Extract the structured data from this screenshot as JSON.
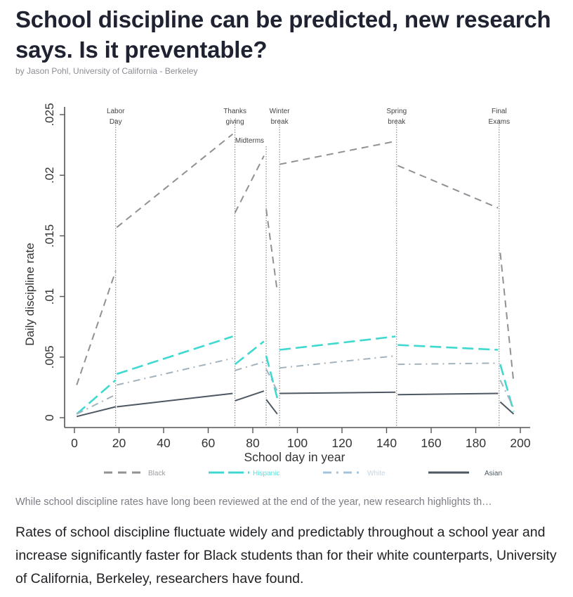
{
  "article": {
    "title": "School discipline can be predicted, new research says. Is it preventable?",
    "byline": "by Jason Pohl, University of California - Berkeley",
    "caption": "While school discipline rates have long been reviewed at the end of the year, new research highlights th…",
    "body": "Rates of school discipline fluctuate widely and predictably throughout a school year and increase significantly faster for Black students than for their white counterparts, University of California, Berkeley, researchers have found."
  },
  "chart_data": {
    "type": "line",
    "title": "",
    "xlabel": "School day in year",
    "ylabel": "Daily discipline rate",
    "xlim": [
      0,
      200
    ],
    "ylim": [
      0,
      0.025
    ],
    "xticks": [
      0,
      20,
      40,
      60,
      80,
      100,
      120,
      140,
      160,
      180,
      200
    ],
    "xtick_labels": [
      "0",
      "20",
      "40",
      "60",
      "80",
      "100",
      "120",
      "140",
      "160",
      "180",
      "200"
    ],
    "yticks": [
      0,
      0.005,
      0.01,
      0.015,
      0.02,
      0.025
    ],
    "ytick_labels": [
      "0",
      ".005",
      ".01",
      ".015",
      ".02",
      ".025"
    ],
    "grid": false,
    "legend_position": "bottom",
    "events": [
      {
        "label": "Labor Day",
        "label_lines": [
          "Labor",
          "Day"
        ],
        "x": 18.5
      },
      {
        "label": "Thanksgiving",
        "label_lines": [
          "Thanks",
          "giving"
        ],
        "x": 72
      },
      {
        "label": "Midterms",
        "label_lines": [
          "Midterms"
        ],
        "x": 86,
        "label_side": "left",
        "label_row": 2
      },
      {
        "label": "Winter break",
        "label_lines": [
          "Winter",
          "break"
        ],
        "x": 92
      },
      {
        "label": "Spring break",
        "label_lines": [
          "Spring",
          "break"
        ],
        "x": 144.5
      },
      {
        "label": "Final Exams",
        "label_lines": [
          "Final",
          "Exams"
        ],
        "x": 190.5
      }
    ],
    "series": [
      {
        "name": "Black",
        "color": "#8e9196",
        "style": "dash",
        "segments": [
          [
            [
              1,
              0.0027
            ],
            [
              18.5,
              0.0121
            ]
          ],
          [
            [
              19,
              0.0157
            ],
            [
              71,
              0.0234
            ]
          ],
          [
            [
              72,
              0.0169
            ],
            [
              85,
              0.0216
            ]
          ],
          [
            [
              86,
              0.0172
            ],
            [
              91,
              0.0104
            ]
          ],
          [
            [
              92,
              0.0209
            ],
            [
              144,
              0.0228
            ]
          ],
          [
            [
              145,
              0.0208
            ],
            [
              190,
              0.0173
            ]
          ],
          [
            [
              191,
              0.0136
            ],
            [
              197,
              0.0029
            ]
          ]
        ]
      },
      {
        "name": "Hispanic",
        "color": "#3fd9d0",
        "style": "longdash",
        "segments": [
          [
            [
              1,
              0.0003
            ],
            [
              18.5,
              0.0031
            ]
          ],
          [
            [
              19,
              0.0036
            ],
            [
              71,
              0.0067
            ]
          ],
          [
            [
              72,
              0.0044
            ],
            [
              85,
              0.0063
            ]
          ],
          [
            [
              86,
              0.0051
            ],
            [
              91,
              0.0016
            ]
          ],
          [
            [
              92,
              0.0056
            ],
            [
              144,
              0.0067
            ]
          ],
          [
            [
              145,
              0.006
            ],
            [
              190,
              0.0056
            ]
          ],
          [
            [
              191,
              0.0044
            ],
            [
              197,
              0.0005
            ]
          ]
        ]
      },
      {
        "name": "White",
        "color": "#a3b3bd",
        "style": "dashdot",
        "segments": [
          [
            [
              1,
              0.0003
            ],
            [
              18.5,
              0.0019
            ]
          ],
          [
            [
              19,
              0.0027
            ],
            [
              71,
              0.0049
            ]
          ],
          [
            [
              72,
              0.0039
            ],
            [
              85,
              0.0046
            ]
          ],
          [
            [
              86,
              0.004
            ],
            [
              91,
              0.0022
            ]
          ],
          [
            [
              92,
              0.0041
            ],
            [
              144,
              0.0051
            ]
          ],
          [
            [
              145,
              0.0044
            ],
            [
              190,
              0.0045
            ]
          ],
          [
            [
              191,
              0.0031
            ],
            [
              197,
              0.0008
            ]
          ]
        ]
      },
      {
        "name": "Asian",
        "color": "#4d5863",
        "style": "solid",
        "segments": [
          [
            [
              1,
              0.0001
            ],
            [
              18.5,
              0.0009
            ]
          ],
          [
            [
              19,
              0.0009
            ],
            [
              71,
              0.002
            ]
          ],
          [
            [
              72,
              0.0014
            ],
            [
              85,
              0.0022
            ]
          ],
          [
            [
              86,
              0.0015
            ],
            [
              91,
              0.0003
            ]
          ],
          [
            [
              92,
              0.002
            ],
            [
              144,
              0.0021
            ]
          ],
          [
            [
              145,
              0.0019
            ],
            [
              190,
              0.002
            ]
          ],
          [
            [
              191,
              0.0013
            ],
            [
              197,
              0.0003
            ]
          ]
        ]
      }
    ]
  }
}
